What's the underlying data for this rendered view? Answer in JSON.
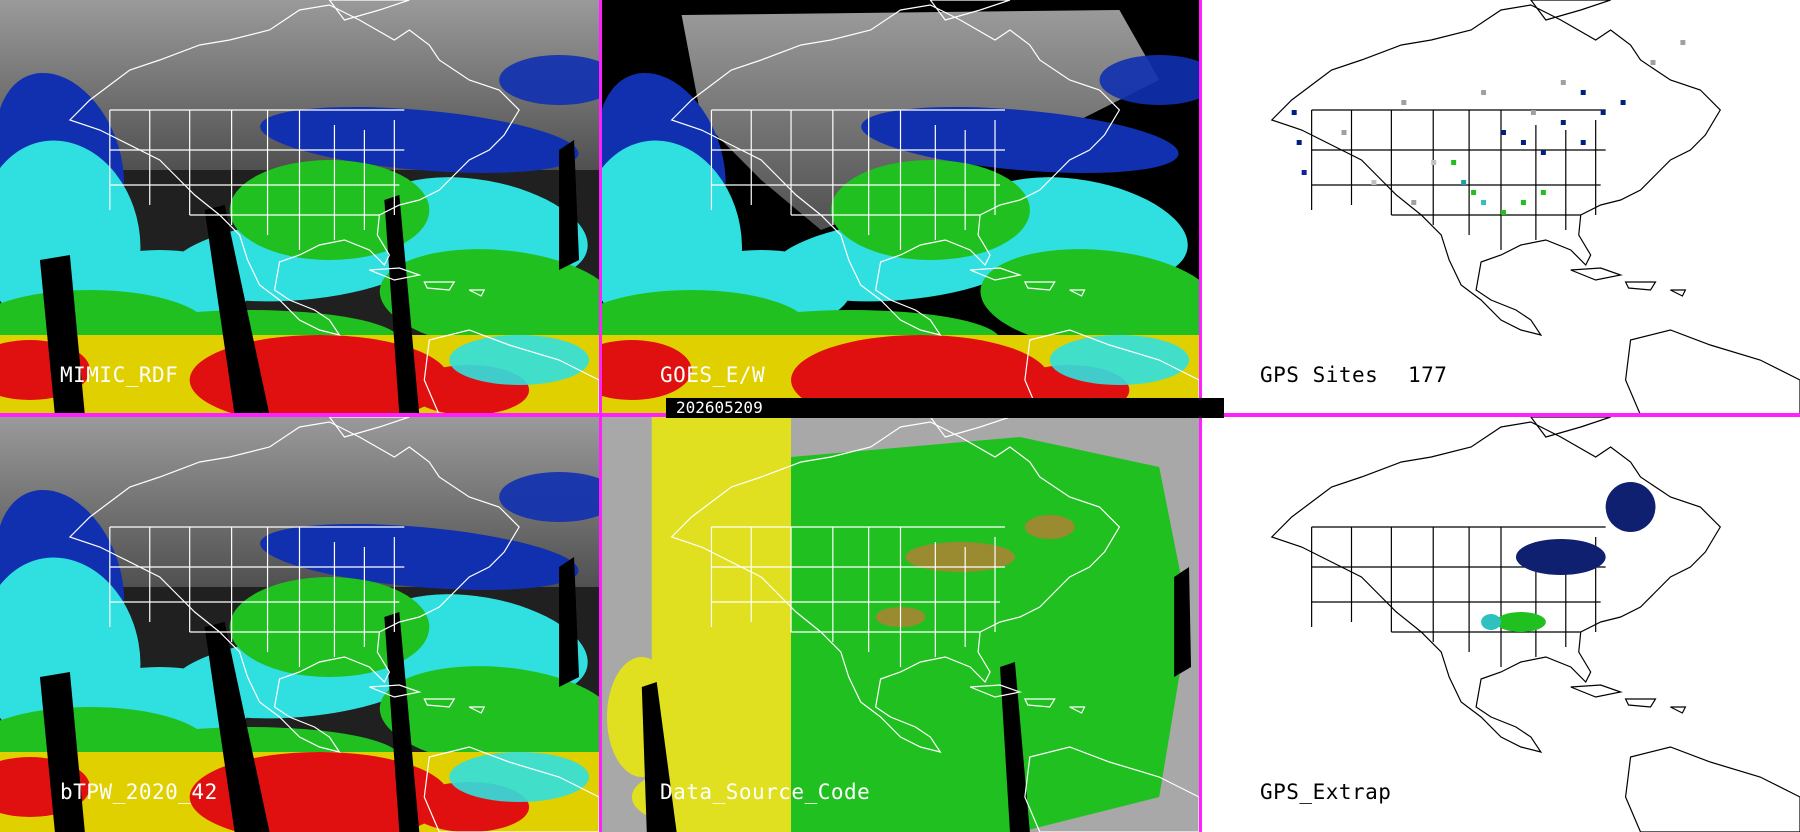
{
  "panels": [
    {
      "id": "p1",
      "label": "MIMIC_RDF",
      "style": "sat"
    },
    {
      "id": "p2",
      "label": "GOES_E/W",
      "style": "goes"
    },
    {
      "id": "p3",
      "label": "GPS Sites",
      "count": "177",
      "style": "gps"
    },
    {
      "id": "p4",
      "label": "bTPW_2020_42",
      "style": "sat"
    },
    {
      "id": "p5",
      "label": "Data_Source_Code",
      "style": "dsc"
    },
    {
      "id": "p6",
      "label": "GPS_Extrap",
      "style": "gpsx"
    }
  ],
  "timestamp": "202605209",
  "colors": {
    "divider": "#ff20ff",
    "land": "#ffffff",
    "border": "#000000"
  }
}
